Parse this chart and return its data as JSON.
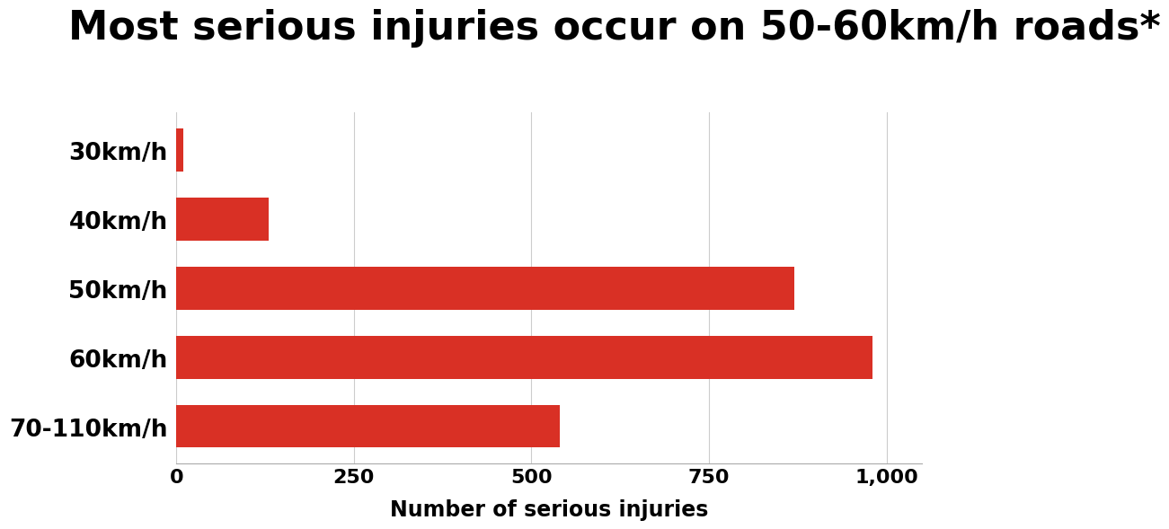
{
  "title": "Most serious injuries occur on 50-60km/h roads*",
  "categories": [
    "30km/h",
    "40km/h",
    "50km/h",
    "60km/h",
    "70-110km/h"
  ],
  "values": [
    10,
    130,
    870,
    980,
    540
  ],
  "bar_color": "#d93025",
  "xlabel": "Number of serious injuries",
  "xlim": [
    0,
    1050
  ],
  "xticks": [
    0,
    250,
    500,
    750,
    1000
  ],
  "xticklabels": [
    "0",
    "250",
    "500",
    "750",
    "1,000"
  ],
  "background_color": "#ffffff",
  "title_fontsize": 32,
  "axis_label_fontsize": 17,
  "tick_fontsize": 16,
  "ytick_fontsize": 19,
  "bar_height": 0.62
}
